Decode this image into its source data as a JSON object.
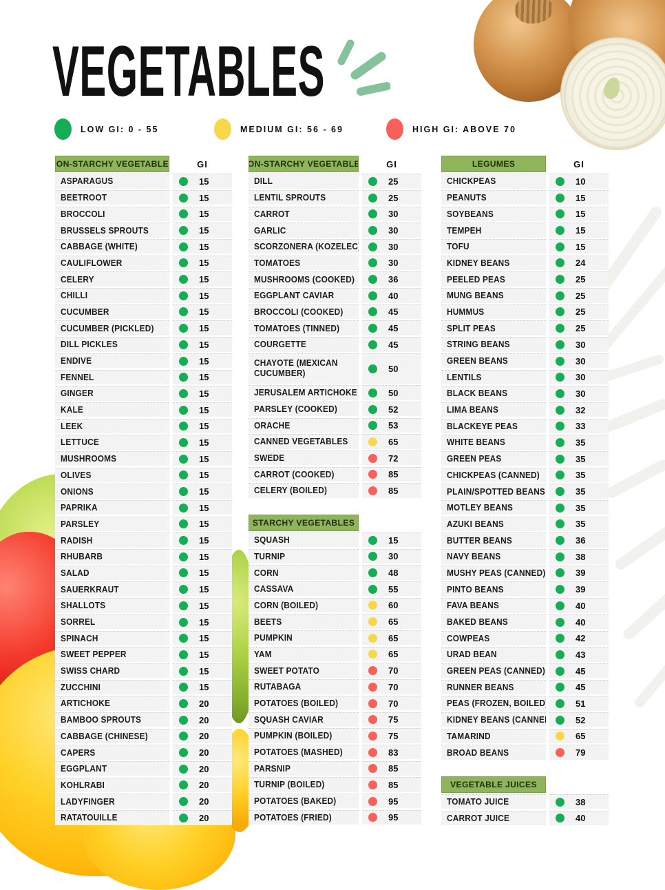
{
  "title": "VEGETABLES",
  "gi_column_label": "GI",
  "colors": {
    "low": "#15ad55",
    "medium": "#f7d84b",
    "high": "#f9605a",
    "header_bg": "#8fb55c",
    "header_text": "#26300f"
  },
  "legend": {
    "items": [
      {
        "label": "LOW GI: 0 - 55",
        "level": "low"
      },
      {
        "label": "MEDIUM GI: 56 - 69",
        "level": "medium"
      },
      {
        "label": "HIGH GI: ABOVE 70",
        "level": "high"
      }
    ]
  },
  "columns": [
    {
      "tables": [
        {
          "header": "NON-STARCHY VEGETABLES",
          "show_gi_label": true,
          "rows": [
            {
              "name": "ASPARAGUS",
              "gi": 15,
              "level": "low"
            },
            {
              "name": "BEETROOT",
              "gi": 15,
              "level": "low"
            },
            {
              "name": "BROCCOLI",
              "gi": 15,
              "level": "low"
            },
            {
              "name": "BRUSSELS SPROUTS",
              "gi": 15,
              "level": "low"
            },
            {
              "name": "CABBAGE (WHITE)",
              "gi": 15,
              "level": "low"
            },
            {
              "name": "CAULIFLOWER",
              "gi": 15,
              "level": "low"
            },
            {
              "name": "CELERY",
              "gi": 15,
              "level": "low"
            },
            {
              "name": "CHILLI",
              "gi": 15,
              "level": "low"
            },
            {
              "name": "CUCUMBER",
              "gi": 15,
              "level": "low"
            },
            {
              "name": "CUCUMBER (PICKLED)",
              "gi": 15,
              "level": "low"
            },
            {
              "name": "DILL PICKLES",
              "gi": 15,
              "level": "low"
            },
            {
              "name": "ENDIVE",
              "gi": 15,
              "level": "low"
            },
            {
              "name": "FENNEL",
              "gi": 15,
              "level": "low"
            },
            {
              "name": "GINGER",
              "gi": 15,
              "level": "low"
            },
            {
              "name": "KALE",
              "gi": 15,
              "level": "low"
            },
            {
              "name": "LEEK",
              "gi": 15,
              "level": "low"
            },
            {
              "name": "LETTUCE",
              "gi": 15,
              "level": "low"
            },
            {
              "name": "MUSHROOMS",
              "gi": 15,
              "level": "low"
            },
            {
              "name": "OLIVES",
              "gi": 15,
              "level": "low"
            },
            {
              "name": "ONIONS",
              "gi": 15,
              "level": "low"
            },
            {
              "name": "PAPRIKA",
              "gi": 15,
              "level": "low"
            },
            {
              "name": "PARSLEY",
              "gi": 15,
              "level": "low"
            },
            {
              "name": "RADISH",
              "gi": 15,
              "level": "low"
            },
            {
              "name": "RHUBARB",
              "gi": 15,
              "level": "low"
            },
            {
              "name": "SALAD",
              "gi": 15,
              "level": "low"
            },
            {
              "name": "SAUERKRAUT",
              "gi": 15,
              "level": "low"
            },
            {
              "name": "SHALLOTS",
              "gi": 15,
              "level": "low"
            },
            {
              "name": "SORREL",
              "gi": 15,
              "level": "low"
            },
            {
              "name": "SPINACH",
              "gi": 15,
              "level": "low"
            },
            {
              "name": "SWEET PEPPER",
              "gi": 15,
              "level": "low"
            },
            {
              "name": "SWISS CHARD",
              "gi": 15,
              "level": "low"
            },
            {
              "name": "ZUCCHINI",
              "gi": 15,
              "level": "low"
            },
            {
              "name": "ARTICHOKE",
              "gi": 20,
              "level": "low"
            },
            {
              "name": "BAMBOO SPROUTS",
              "gi": 20,
              "level": "low"
            },
            {
              "name": "CABBAGE (CHINESE)",
              "gi": 20,
              "level": "low"
            },
            {
              "name": "CAPERS",
              "gi": 20,
              "level": "low"
            },
            {
              "name": "EGGPLANT",
              "gi": 20,
              "level": "low"
            },
            {
              "name": "KOHLRABI",
              "gi": 20,
              "level": "low"
            },
            {
              "name": "LADYFINGER",
              "gi": 20,
              "level": "low"
            },
            {
              "name": "RATATOUILLE",
              "gi": 20,
              "level": "low"
            }
          ]
        }
      ]
    },
    {
      "tables": [
        {
          "header": "NON-STARCHY VEGETABLES",
          "show_gi_label": true,
          "rows": [
            {
              "name": "DILL",
              "gi": 25,
              "level": "low"
            },
            {
              "name": "LENTIL SPROUTS",
              "gi": 25,
              "level": "low"
            },
            {
              "name": "CARROT",
              "gi": 30,
              "level": "low"
            },
            {
              "name": "GARLIC",
              "gi": 30,
              "level": "low"
            },
            {
              "name": "SCORZONERA (KOZELEC)",
              "gi": 30,
              "level": "low"
            },
            {
              "name": "TOMATOES",
              "gi": 30,
              "level": "low"
            },
            {
              "name": "MUSHROOMS (COOKED)",
              "gi": 36,
              "level": "low"
            },
            {
              "name": "EGGPLANT CAVIAR",
              "gi": 40,
              "level": "low"
            },
            {
              "name": "BROCCOLI (COOKED)",
              "gi": 45,
              "level": "low"
            },
            {
              "name": "TOMATOES (TINNED)",
              "gi": 45,
              "level": "low"
            },
            {
              "name": "COURGETTE",
              "gi": 45,
              "level": "low"
            },
            {
              "name": "CHAYOTE (MEXICAN CUCUMBER)",
              "gi": 50,
              "level": "low",
              "tall": true
            },
            {
              "name": "JERUSALEM ARTICHOKE",
              "gi": 50,
              "level": "low"
            },
            {
              "name": "PARSLEY (COOKED)",
              "gi": 52,
              "level": "low"
            },
            {
              "name": "ORACHE",
              "gi": 53,
              "level": "low"
            },
            {
              "name": "CANNED VEGETABLES",
              "gi": 65,
              "level": "medium"
            },
            {
              "name": "SWEDE",
              "gi": 72,
              "level": "high"
            },
            {
              "name": "CARROT (COOKED)",
              "gi": 85,
              "level": "high"
            },
            {
              "name": "CELERY (BOILED)",
              "gi": 85,
              "level": "high"
            }
          ]
        },
        {
          "header": "STARCHY VEGETABLES",
          "show_gi_label": false,
          "rows": [
            {
              "name": "SQUASH",
              "gi": 15,
              "level": "low"
            },
            {
              "name": "TURNIP",
              "gi": 30,
              "level": "low"
            },
            {
              "name": "CORN",
              "gi": 48,
              "level": "low"
            },
            {
              "name": "CASSAVA",
              "gi": 55,
              "level": "low"
            },
            {
              "name": "CORN (BOILED)",
              "gi": 60,
              "level": "medium"
            },
            {
              "name": "BEETS",
              "gi": 65,
              "level": "medium"
            },
            {
              "name": "PUMPKIN",
              "gi": 65,
              "level": "medium"
            },
            {
              "name": "YAM",
              "gi": 65,
              "level": "medium"
            },
            {
              "name": "SWEET POTATO",
              "gi": 70,
              "level": "high"
            },
            {
              "name": "RUTABAGA",
              "gi": 70,
              "level": "high"
            },
            {
              "name": "POTATOES (BOILED)",
              "gi": 70,
              "level": "high"
            },
            {
              "name": "SQUASH CAVIAR",
              "gi": 75,
              "level": "high"
            },
            {
              "name": "PUMPKIN (BOILED)",
              "gi": 75,
              "level": "high"
            },
            {
              "name": "POTATOES (MASHED)",
              "gi": 83,
              "level": "high"
            },
            {
              "name": "PARSNIP",
              "gi": 85,
              "level": "high"
            },
            {
              "name": "TURNIP (BOILED)",
              "gi": 85,
              "level": "high"
            },
            {
              "name": "POTATOES (BAKED)",
              "gi": 95,
              "level": "high"
            },
            {
              "name": "POTATOES (FRIED)",
              "gi": 95,
              "level": "high"
            }
          ]
        }
      ]
    },
    {
      "tables": [
        {
          "header": "LEGUMES",
          "show_gi_label": true,
          "rows": [
            {
              "name": "CHICKPEAS",
              "gi": 10,
              "level": "low"
            },
            {
              "name": "PEANUTS",
              "gi": 15,
              "level": "low"
            },
            {
              "name": "SOYBEANS",
              "gi": 15,
              "level": "low"
            },
            {
              "name": "TEMPEH",
              "gi": 15,
              "level": "low"
            },
            {
              "name": "TOFU",
              "gi": 15,
              "level": "low"
            },
            {
              "name": "KIDNEY BEANS",
              "gi": 24,
              "level": "low"
            },
            {
              "name": "PEELED PEAS",
              "gi": 25,
              "level": "low"
            },
            {
              "name": "MUNG BEANS",
              "gi": 25,
              "level": "low"
            },
            {
              "name": "HUMMUS",
              "gi": 25,
              "level": "low"
            },
            {
              "name": "SPLIT PEAS",
              "gi": 25,
              "level": "low"
            },
            {
              "name": "STRING BEANS",
              "gi": 30,
              "level": "low"
            },
            {
              "name": "GREEN BEANS",
              "gi": 30,
              "level": "low"
            },
            {
              "name": "LENTILS",
              "gi": 30,
              "level": "low"
            },
            {
              "name": "BLACK BEANS",
              "gi": 30,
              "level": "low"
            },
            {
              "name": "LIMA BEANS",
              "gi": 32,
              "level": "low"
            },
            {
              "name": "BLACKEYE PEAS",
              "gi": 33,
              "level": "low"
            },
            {
              "name": "WHITE BEANS",
              "gi": 35,
              "level": "low"
            },
            {
              "name": "GREEN PEAS",
              "gi": 35,
              "level": "low"
            },
            {
              "name": "CHICKPEAS (CANNED)",
              "gi": 35,
              "level": "low"
            },
            {
              "name": "PLAIN/SPOTTED BEANS",
              "gi": 35,
              "level": "low"
            },
            {
              "name": "MOTLEY BEANS",
              "gi": 35,
              "level": "low"
            },
            {
              "name": "AZUKI BEANS",
              "gi": 35,
              "level": "low"
            },
            {
              "name": "BUTTER BEANS",
              "gi": 36,
              "level": "low"
            },
            {
              "name": "NAVY BEANS",
              "gi": 38,
              "level": "low"
            },
            {
              "name": "MUSHY PEAS (CANNED)",
              "gi": 39,
              "level": "low"
            },
            {
              "name": "PINTO BEANS",
              "gi": 39,
              "level": "low"
            },
            {
              "name": "FAVA BEANS",
              "gi": 40,
              "level": "low"
            },
            {
              "name": "BAKED BEANS",
              "gi": 40,
              "level": "low"
            },
            {
              "name": "COWPEAS",
              "gi": 42,
              "level": "low"
            },
            {
              "name": "URAD BEAN",
              "gi": 43,
              "level": "low"
            },
            {
              "name": "GREEN PEAS (CANNED)",
              "gi": 45,
              "level": "low"
            },
            {
              "name": "RUNNER BEANS",
              "gi": 45,
              "level": "low"
            },
            {
              "name": "PEAS (FROZEN, BOILED)",
              "gi": 51,
              "level": "low"
            },
            {
              "name": "KIDNEY BEANS (CANNED)",
              "gi": 52,
              "level": "low"
            },
            {
              "name": "TAMARIND",
              "gi": 65,
              "level": "medium"
            },
            {
              "name": "BROAD BEANS",
              "gi": 79,
              "level": "high"
            }
          ]
        },
        {
          "header": "VEGETABLE JUICES",
          "show_gi_label": false,
          "rows": [
            {
              "name": "TOMATO JUICE",
              "gi": 38,
              "level": "low"
            },
            {
              "name": "CARROT JUICE",
              "gi": 40,
              "level": "low"
            }
          ]
        }
      ]
    }
  ]
}
